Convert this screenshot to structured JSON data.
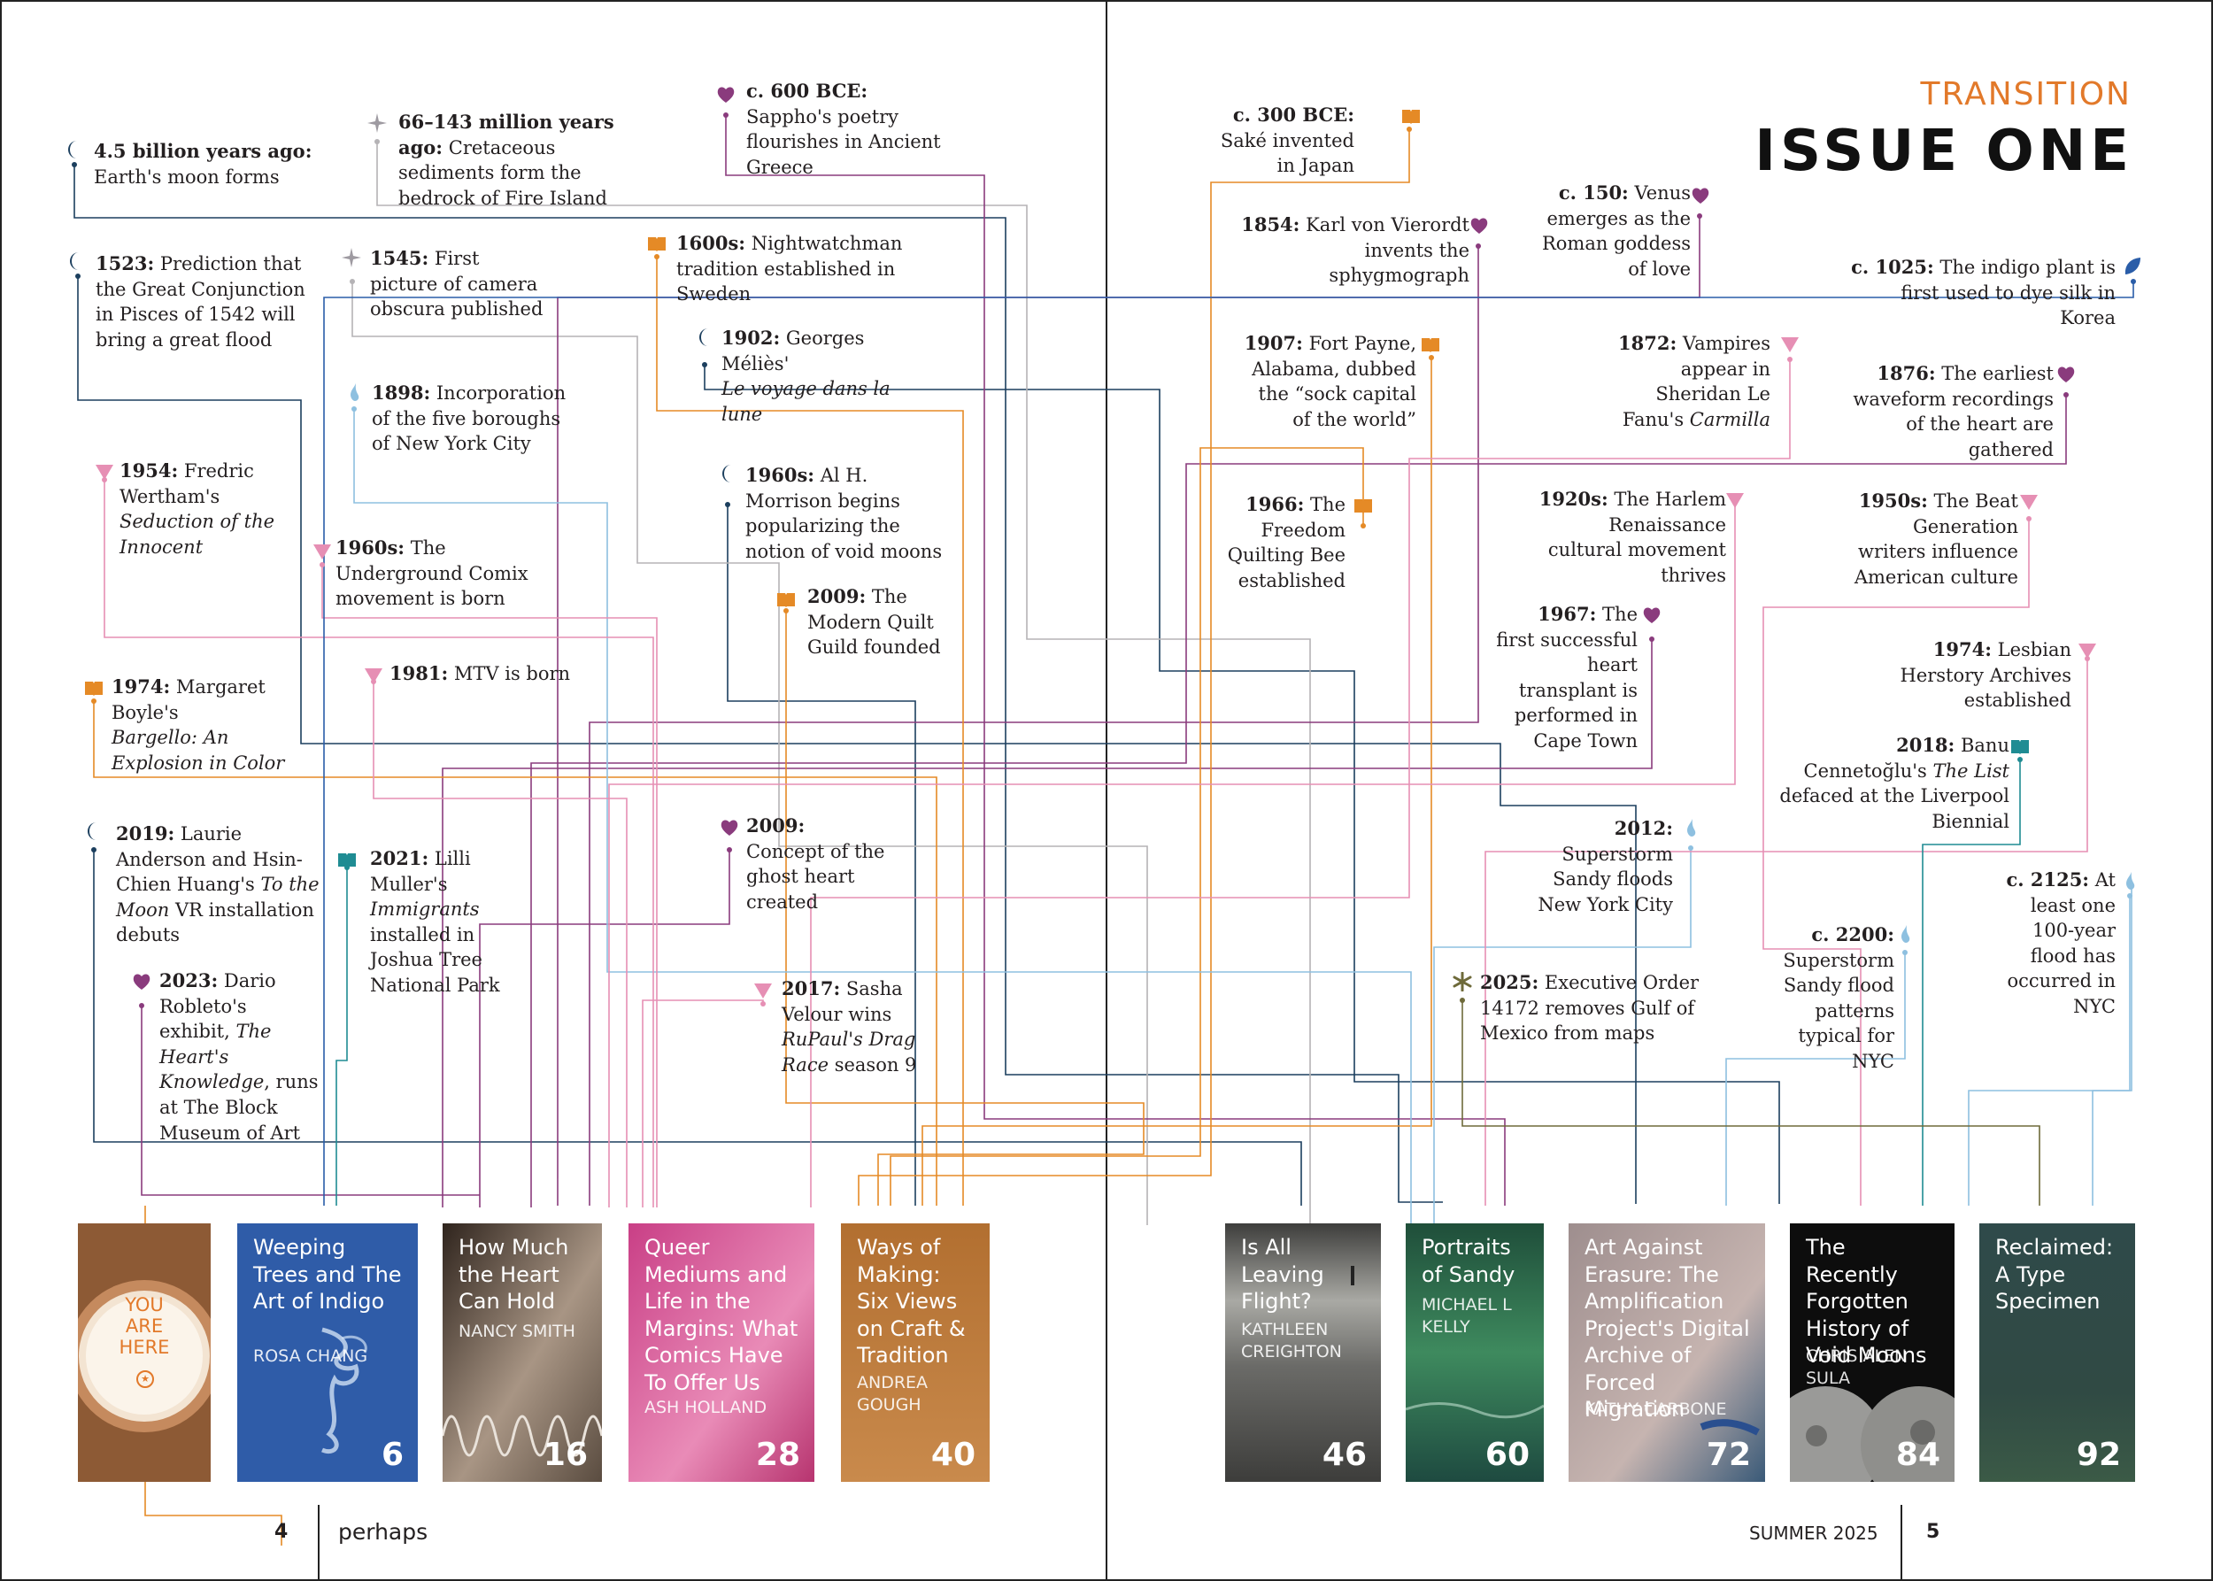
{
  "header": {
    "brand": "TRANSITION",
    "title": "ISSUE ONE"
  },
  "footer": {
    "left_page": "4",
    "left_label": "perhaps",
    "right_label": "SUMMER 2025",
    "right_page": "5"
  },
  "colors": {
    "moon": "#1c3f5e",
    "sparkle": "#9e9aa1",
    "heart": "#8a3b7d",
    "book": "#e58a26",
    "drop": "#8ec0e0",
    "triangle": "#e68fb4",
    "teal": "#1f8c93",
    "leaf": "#2a5da8",
    "olive": "#6e6a3a"
  },
  "events": [
    {
      "id": "moon-forms",
      "date": "4.5 billion years ago:",
      "text": "Earth's moon forms",
      "icon": "moon-icon"
    },
    {
      "id": "cretaceous",
      "date": "66–143 million years ago:",
      "text": "Cretaceous sediments form the bedrock of Fire Island",
      "icon": "sparkle-icon"
    },
    {
      "id": "sappho",
      "date": "c. 600 BCE:",
      "text": "Sappho's poetry flourishes in Ancient Greece",
      "icon": "heart-icon"
    },
    {
      "id": "great-flood",
      "date": "1523:",
      "text": "Prediction that the Great Conjunction in Pisces of 1542 will bring a great flood",
      "icon": "moon-icon"
    },
    {
      "id": "camera-obscura",
      "date": "1545:",
      "text": "First picture of camera obscura published",
      "icon": "sparkle-icon"
    },
    {
      "id": "nightwatchman",
      "date": "1600s:",
      "text": "Nightwatchman tradition established in Sweden",
      "icon": "book-icon"
    },
    {
      "id": "melies",
      "date": "1902:",
      "text": "Georges Méliès'",
      "text_italic": "Le voyage dans la lune",
      "icon": "moon-icon"
    },
    {
      "id": "boroughs",
      "date": "1898:",
      "text": "Incorporation of the five boroughs of New York City",
      "icon": "drop-icon"
    },
    {
      "id": "wertham",
      "date": "1954:",
      "text": "Fredric Wertham's",
      "text_italic": "Seduction of the Innocent",
      "icon": "triangle-icon"
    },
    {
      "id": "void-moons",
      "date": "1960s:",
      "text": "Al H. Morrison begins popularizing the notion of void moons",
      "icon": "moon-icon"
    },
    {
      "id": "underground-comix",
      "date": "1960s:",
      "text": "The Underground Comix movement is born",
      "icon": "triangle-icon"
    },
    {
      "id": "modern-quilt",
      "date": "2009:",
      "text": "The Modern Quilt Guild founded",
      "icon": "book-icon"
    },
    {
      "id": "bargello",
      "date": "1974:",
      "text": "Margaret Boyle's",
      "text_italic": "Bargello: An Explosion in Color",
      "icon": "book-icon"
    },
    {
      "id": "mtv",
      "date": "1981:",
      "text": "MTV is born",
      "icon": "triangle-icon"
    },
    {
      "id": "ghost-heart",
      "date": "2009:",
      "text": "Concept of the ghost heart created",
      "icon": "heart-icon"
    },
    {
      "id": "to-the-moon",
      "date": "2019:",
      "text": "Laurie Anderson and Hsin-Chien Huang's",
      "text_italic": "To the Moon",
      "text_after": "VR installation debuts",
      "icon": "moon-icon"
    },
    {
      "id": "immigrants",
      "date": "2021:",
      "text": "Lilli Muller's",
      "text_italic": "Immigrants",
      "text_after": "installed in Joshua Tree National Park",
      "icon": "teal-book-icon"
    },
    {
      "id": "hearts-knowledge",
      "date": "2023:",
      "text": "Dario Robleto's exhibit,",
      "text_italic": "The Heart's Knowledge",
      "text_after": ", runs at The Block Museum of Art",
      "icon": "heart-icon"
    },
    {
      "id": "sasha-velour",
      "date": "2017:",
      "text": "Sasha Velour wins",
      "text_italic": "RuPaul's Drag Race",
      "text_after": "season 9",
      "icon": "triangle-icon"
    },
    {
      "id": "sake",
      "date": "c. 300 BCE:",
      "text": "Saké invented in Japan",
      "icon": "book-icon"
    },
    {
      "id": "venus",
      "date": "c. 150:",
      "text": "Venus emerges as the Roman goddess of love",
      "icon": "heart-icon"
    },
    {
      "id": "sphygmograph",
      "date": "1854:",
      "text": "Karl von Vierordt invents the sphygmograph",
      "icon": "heart-icon"
    },
    {
      "id": "indigo",
      "date": "c. 1025:",
      "text": "The indigo plant is first used to dye silk in Korea",
      "icon": "leaf-icon"
    },
    {
      "id": "fort-payne",
      "date": "1907:",
      "text": "Fort Payne, Alabama, dubbed the “sock capital of the world”",
      "icon": "book-icon"
    },
    {
      "id": "vampires",
      "date": "1872:",
      "text": "Vampires appear in Sheridan Le Fanu's",
      "text_italic": "Carmilla",
      "icon": "triangle-icon"
    },
    {
      "id": "waveform",
      "date": "1876:",
      "text": "The earliest waveform recordings of the heart are gathered",
      "icon": "heart-icon"
    },
    {
      "id": "quilting-bee",
      "date": "1966:",
      "text": "The Freedom Quilting Bee established",
      "icon": "book-icon"
    },
    {
      "id": "harlem",
      "date": "1920s:",
      "text": "The Harlem Renaissance cultural movement thrives",
      "icon": "triangle-icon"
    },
    {
      "id": "beat",
      "date": "1950s:",
      "text": "The Beat Generation writers influence American culture",
      "icon": "triangle-icon"
    },
    {
      "id": "heart-transplant",
      "date": "1967:",
      "text": "The first successful heart transplant is performed in Cape Town",
      "icon": "heart-icon"
    },
    {
      "id": "herstory",
      "date": "1974:",
      "text": "Lesbian Herstory Archives established",
      "icon": "triangle-icon"
    },
    {
      "id": "the-list",
      "date": "2018:",
      "text": "Banu Cennetoğlu's",
      "text_italic": "The List",
      "text_after": "defaced at the Liverpool Biennial",
      "icon": "teal-book-icon"
    },
    {
      "id": "sandy-2012",
      "date": "2012:",
      "text": "Superstorm Sandy floods New York City",
      "icon": "drop-icon"
    },
    {
      "id": "c-2125",
      "date": "c. 2125:",
      "text": "At least one 100-year flood has occurred in NYC",
      "icon": "drop-icon"
    },
    {
      "id": "c-2200",
      "date": "c. 2200:",
      "text": "Superstorm Sandy flood patterns typical for NYC",
      "icon": "drop-icon"
    },
    {
      "id": "executive-order",
      "date": "2025:",
      "text": "Executive Order 14172 removes Gulf of Mexico from maps",
      "icon": "asterisk-icon"
    }
  ],
  "covers": [
    {
      "id": "you-are-here",
      "title": "YOU ARE HERE",
      "author": "",
      "page": ""
    },
    {
      "id": "weeping-trees",
      "title": "Weeping Trees and The Art of Indigo",
      "author": "ROSA CHANG",
      "page": "6"
    },
    {
      "id": "how-much-heart",
      "title": "How Much the Heart Can Hold",
      "author": "NANCY SMITH",
      "page": "16"
    },
    {
      "id": "queer-mediums",
      "title": "Queer Mediums and Life in the Margins: What Comics Have To Offer Us",
      "author": "ASH HOLLAND",
      "page": "28"
    },
    {
      "id": "ways-of-making",
      "title": "Ways of Making: Six Views on Craft & Tradition",
      "author": "ANDREA GOUGH",
      "page": "40"
    },
    {
      "id": "leaving-flight",
      "title": "Is All Leaving Flight?",
      "author": "KATHLEEN CREIGHTON",
      "page": "46"
    },
    {
      "id": "portraits-sandy",
      "title": "Portraits of Sandy",
      "author": "MICHAEL L KELLY",
      "page": "60"
    },
    {
      "id": "art-against-erasure",
      "title": "Art Against Erasure: The Amplification Project's Digital Archive of Forced Migration",
      "author": "KATHY CARBONE",
      "page": "72"
    },
    {
      "id": "void-moons-history",
      "title": "The Recently Forgotten History of Void Moons",
      "author": "CHRIS ALEN SULA",
      "page": "84"
    },
    {
      "id": "reclaimed",
      "title": "Reclaimed: A Type Specimen",
      "author": "",
      "page": "92"
    }
  ]
}
